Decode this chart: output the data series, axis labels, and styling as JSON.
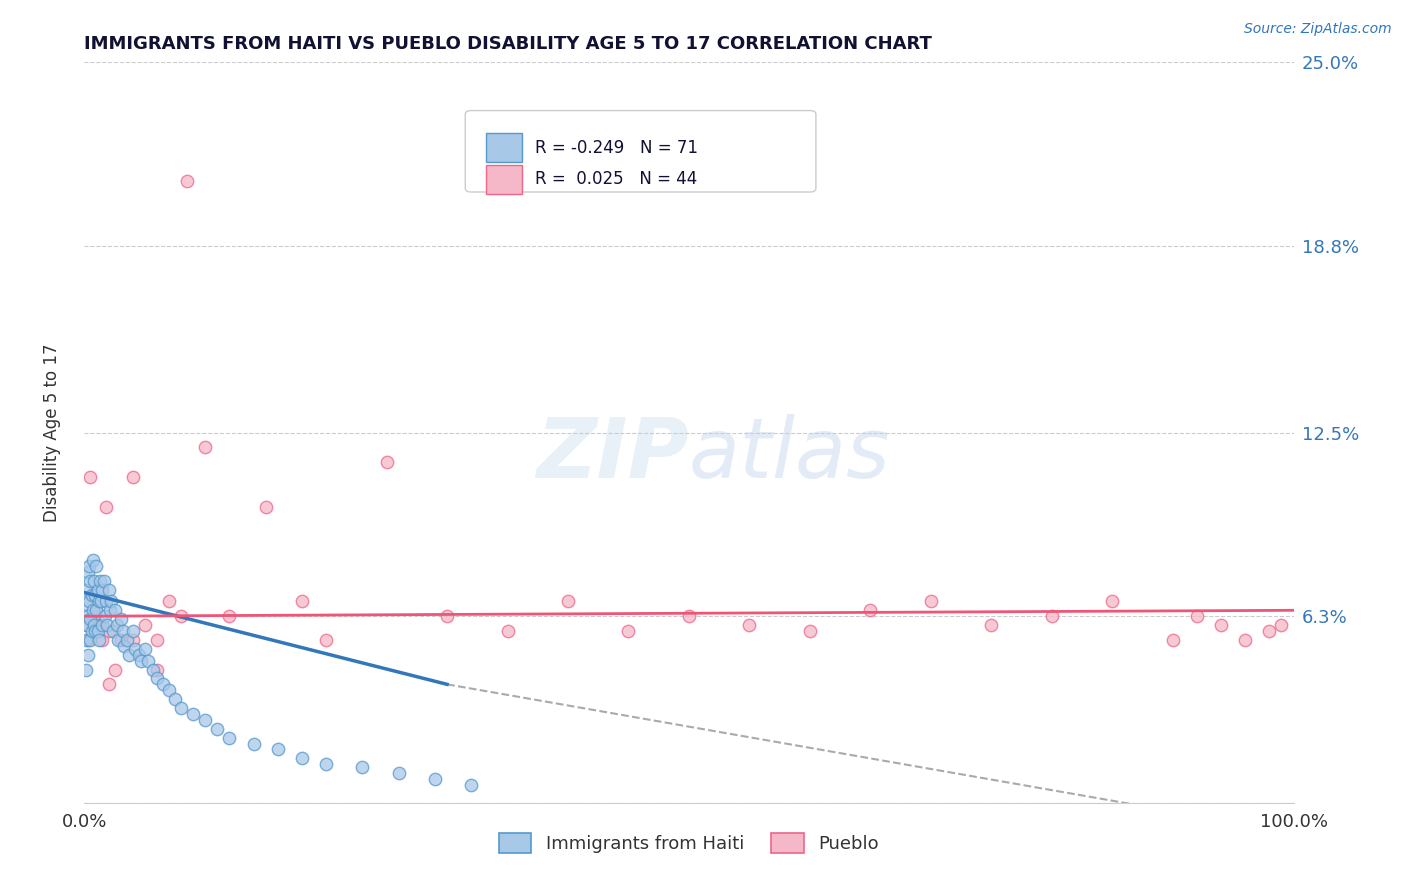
{
  "title": "IMMIGRANTS FROM HAITI VS PUEBLO DISABILITY AGE 5 TO 17 CORRELATION CHART",
  "source": "Source: ZipAtlas.com",
  "ylabel": "Disability Age 5 to 17",
  "xlim": [
    0.0,
    1.0
  ],
  "ylim": [
    0.0,
    0.25
  ],
  "ytick_labels": [
    "",
    "6.3%",
    "12.5%",
    "18.8%",
    "25.0%"
  ],
  "ytick_values": [
    0.0,
    0.063,
    0.125,
    0.188,
    0.25
  ],
  "xtick_labels": [
    "0.0%",
    "100.0%"
  ],
  "xtick_values": [
    0.0,
    1.0
  ],
  "legend_haiti": "Immigrants from Haiti",
  "legend_pueblo": "Pueblo",
  "R_haiti": -0.249,
  "N_haiti": 71,
  "R_pueblo": 0.025,
  "N_pueblo": 44,
  "haiti_color": "#a8c8e8",
  "pueblo_color": "#f5b8c8",
  "haiti_edge_color": "#5599cc",
  "pueblo_edge_color": "#ee6688",
  "haiti_line_color": "#3377bb",
  "pueblo_line_color": "#ee5577",
  "dash_color": "#aaaaaa",
  "watermark_color": "#ddeeff",
  "background_color": "#ffffff",
  "haiti_x": [
    0.001,
    0.001,
    0.002,
    0.002,
    0.003,
    0.003,
    0.003,
    0.004,
    0.004,
    0.005,
    0.005,
    0.005,
    0.006,
    0.006,
    0.007,
    0.007,
    0.008,
    0.008,
    0.009,
    0.009,
    0.01,
    0.01,
    0.011,
    0.011,
    0.012,
    0.012,
    0.013,
    0.014,
    0.015,
    0.015,
    0.016,
    0.017,
    0.018,
    0.019,
    0.02,
    0.021,
    0.022,
    0.024,
    0.025,
    0.027,
    0.028,
    0.03,
    0.032,
    0.033,
    0.035,
    0.037,
    0.04,
    0.042,
    0.045,
    0.047,
    0.05,
    0.053,
    0.057,
    0.06,
    0.065,
    0.07,
    0.075,
    0.08,
    0.09,
    0.1,
    0.11,
    0.12,
    0.14,
    0.16,
    0.18,
    0.2,
    0.23,
    0.26,
    0.29,
    0.32,
    0.001
  ],
  "haiti_y": [
    0.067,
    0.055,
    0.072,
    0.06,
    0.078,
    0.063,
    0.05,
    0.08,
    0.068,
    0.075,
    0.062,
    0.055,
    0.07,
    0.058,
    0.082,
    0.065,
    0.075,
    0.06,
    0.07,
    0.058,
    0.08,
    0.065,
    0.072,
    0.058,
    0.068,
    0.055,
    0.075,
    0.068,
    0.072,
    0.06,
    0.075,
    0.063,
    0.068,
    0.06,
    0.072,
    0.065,
    0.068,
    0.058,
    0.065,
    0.06,
    0.055,
    0.062,
    0.058,
    0.053,
    0.055,
    0.05,
    0.058,
    0.052,
    0.05,
    0.048,
    0.052,
    0.048,
    0.045,
    0.042,
    0.04,
    0.038,
    0.035,
    0.032,
    0.03,
    0.028,
    0.025,
    0.022,
    0.02,
    0.018,
    0.015,
    0.013,
    0.012,
    0.01,
    0.008,
    0.006,
    0.045
  ],
  "pueblo_x": [
    0.001,
    0.003,
    0.005,
    0.008,
    0.01,
    0.012,
    0.015,
    0.018,
    0.02,
    0.025,
    0.03,
    0.04,
    0.05,
    0.06,
    0.07,
    0.08,
    0.1,
    0.12,
    0.15,
    0.18,
    0.2,
    0.25,
    0.3,
    0.35,
    0.4,
    0.45,
    0.5,
    0.55,
    0.6,
    0.65,
    0.7,
    0.75,
    0.8,
    0.85,
    0.9,
    0.92,
    0.94,
    0.96,
    0.98,
    0.99,
    0.02,
    0.04,
    0.06,
    0.085
  ],
  "pueblo_y": [
    0.06,
    0.055,
    0.11,
    0.063,
    0.065,
    0.06,
    0.055,
    0.1,
    0.058,
    0.045,
    0.055,
    0.11,
    0.06,
    0.055,
    0.068,
    0.063,
    0.12,
    0.063,
    0.1,
    0.068,
    0.055,
    0.115,
    0.063,
    0.058,
    0.068,
    0.058,
    0.063,
    0.06,
    0.058,
    0.065,
    0.068,
    0.06,
    0.063,
    0.068,
    0.055,
    0.063,
    0.06,
    0.055,
    0.058,
    0.06,
    0.04,
    0.055,
    0.045,
    0.21
  ],
  "haiti_line_x_start": 0.0,
  "haiti_line_x_end": 0.3,
  "haiti_line_y_start": 0.071,
  "haiti_line_y_end": 0.04,
  "dash_line_x_start": 0.3,
  "dash_line_x_end": 1.0,
  "dash_line_y_start": 0.04,
  "dash_line_y_end": -0.01,
  "pueblo_line_x_start": 0.0,
  "pueblo_line_x_end": 1.0,
  "pueblo_line_y_start": 0.063,
  "pueblo_line_y_end": 0.065
}
